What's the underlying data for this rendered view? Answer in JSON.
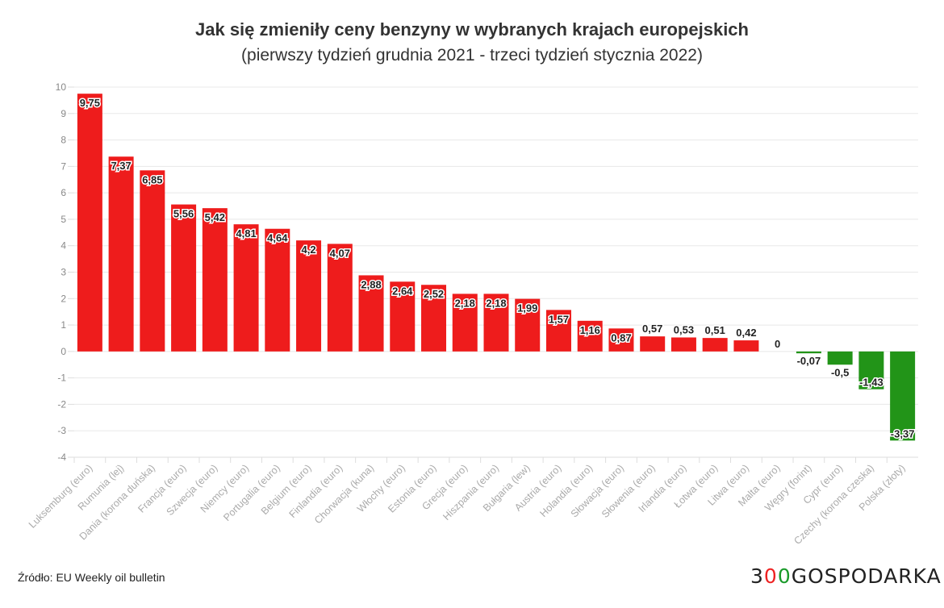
{
  "title": "Jak się zmieniły ceny benzyny w wybranych krajach europejskich",
  "subtitle": "(pierwszy tydzień grudnia 2021 - trzeci tydzień stycznia 2022)",
  "source": "Źródło: EU Weekly oil bulletin",
  "logo": {
    "part1": "3",
    "part2": "0",
    "part3": "0",
    "part4": "GOSPODARKA"
  },
  "colors": {
    "positive": "#ee1c1c",
    "negative": "#229418",
    "logo_red": "#e22",
    "logo_green": "#1a9a2a"
  },
  "chart_data": {
    "type": "bar",
    "title": "Jak się zmieniły ceny benzyny w wybranych krajach europejskich",
    "subtitle": "(pierwszy tydzień grudnia 2021 - trzeci tydzień stycznia 2022)",
    "categories": [
      "Luksemburg (euro)",
      "Rumunia (lej)",
      "Dania (korona duńska)",
      "Francja (euro)",
      "Szwecja (euro)",
      "Niemcy (euro)",
      "Portugalia (euro)",
      "Belgium (euro)",
      "Finlandia (euro)",
      "Chorwacja (kuna)",
      "Włochy (euro)",
      "Estonia (euro)",
      "Grecja (euro)",
      "Hiszpania (euro)",
      "Bułgaria (lew)",
      "Austria (euro)",
      "Holandia (euro)",
      "Słowacja (euro)",
      "Słowenia (euro)",
      "Irlandia (euro)",
      "Łotwa (euro)",
      "Litwa (euro)",
      "Malta (euro)",
      "Węgry (forint)",
      "Cypr (euro)",
      "Czechy (korona czeska)",
      "Polska (złoty)"
    ],
    "values": [
      9.75,
      7.37,
      6.85,
      5.56,
      5.42,
      4.81,
      4.64,
      4.2,
      4.07,
      2.88,
      2.64,
      2.52,
      2.18,
      2.18,
      1.99,
      1.57,
      1.16,
      0.87,
      0.57,
      0.53,
      0.51,
      0.42,
      0,
      -0.07,
      -0.5,
      -1.43,
      -3.37
    ],
    "data_labels": [
      "9,75",
      "7,37",
      "6,85",
      "5,56",
      "5,42",
      "4,81",
      "4,64",
      "4,2",
      "4,07",
      "2,88",
      "2,64",
      "2,52",
      "2,18",
      "2,18",
      "1,99",
      "1,57",
      "1,16",
      "0,87",
      "0,57",
      "0,53",
      "0,51",
      "0,42",
      "0",
      "-0,07",
      "-0,5",
      "-1,43",
      "-3,37"
    ],
    "ylim": [
      -4,
      10
    ],
    "yticks": [
      "-4",
      "-3",
      "-2",
      "-1",
      "0",
      "1",
      "2",
      "3",
      "4",
      "5",
      "6",
      "7",
      "8",
      "9",
      "10"
    ],
    "grid": true,
    "legend": "none",
    "xlabel": "",
    "ylabel": ""
  }
}
